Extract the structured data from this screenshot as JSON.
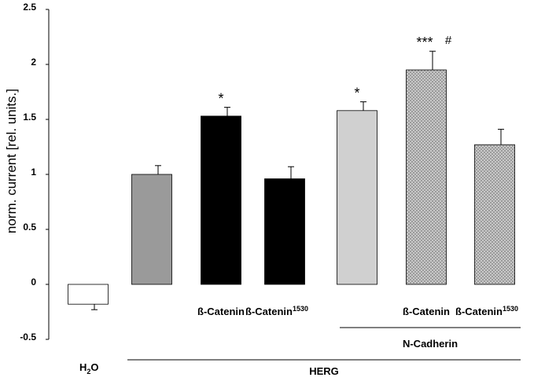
{
  "chart_data": {
    "type": "bar",
    "title": "",
    "xlabel": "",
    "ylabel": "norm. current [rel. units.]",
    "ylim": [
      -0.5,
      2.5
    ],
    "yticks": [
      "2.5",
      "2",
      "1.5",
      "1",
      "0.5",
      "0",
      "-0.5"
    ],
    "grid": false,
    "bars": [
      {
        "name": "H2O",
        "label_main": "H",
        "label_sub": "2",
        "label_rest": "O",
        "value": -0.18,
        "error": 0.05,
        "fill": "white",
        "annotation": ""
      },
      {
        "name": "HERG",
        "label_main": "",
        "label_sup": "",
        "value": 1.0,
        "error": 0.08,
        "fill": "gray",
        "annotation": ""
      },
      {
        "name": "HERG + ß-Catenin",
        "label_main": "ß-Catenin",
        "label_sup": "",
        "value": 1.53,
        "error": 0.08,
        "fill": "black",
        "annotation": "*"
      },
      {
        "name": "HERG + ß-Catenin1530",
        "label_main": "ß-Catenin",
        "label_sup": "1530",
        "value": 0.96,
        "error": 0.11,
        "fill": "black",
        "annotation": ""
      },
      {
        "name": "HERG + N-Cadherin",
        "label_main": "",
        "label_sup": "",
        "value": 1.58,
        "error": 0.08,
        "fill": "lightgray",
        "annotation": "*"
      },
      {
        "name": "HERG + N-Cadherin + ß-Catenin",
        "label_main": "ß-Catenin",
        "label_sup": "",
        "value": 1.95,
        "error": 0.17,
        "fill": "crosshatch",
        "annotation": "***",
        "annotation2": "#"
      },
      {
        "name": "HERG + N-Cadherin + ß-Catenin1530",
        "label_main": "ß-Catenin",
        "label_sup": "1530",
        "value": 1.27,
        "error": 0.14,
        "fill": "crosshatch",
        "annotation": ""
      }
    ],
    "groups": [
      {
        "label": "N-Cadherin",
        "from_bar": 4,
        "to_bar": 6
      },
      {
        "label": "HERG",
        "from_bar": 1,
        "to_bar": 6
      }
    ],
    "colors": {
      "gray": "#9a9a9a",
      "black": "#000000",
      "lightgray": "#d0d0d0",
      "white": "#ffffff",
      "hatch_bg": "#8f8f8f",
      "hatch_line": "#d4d4d4"
    }
  }
}
